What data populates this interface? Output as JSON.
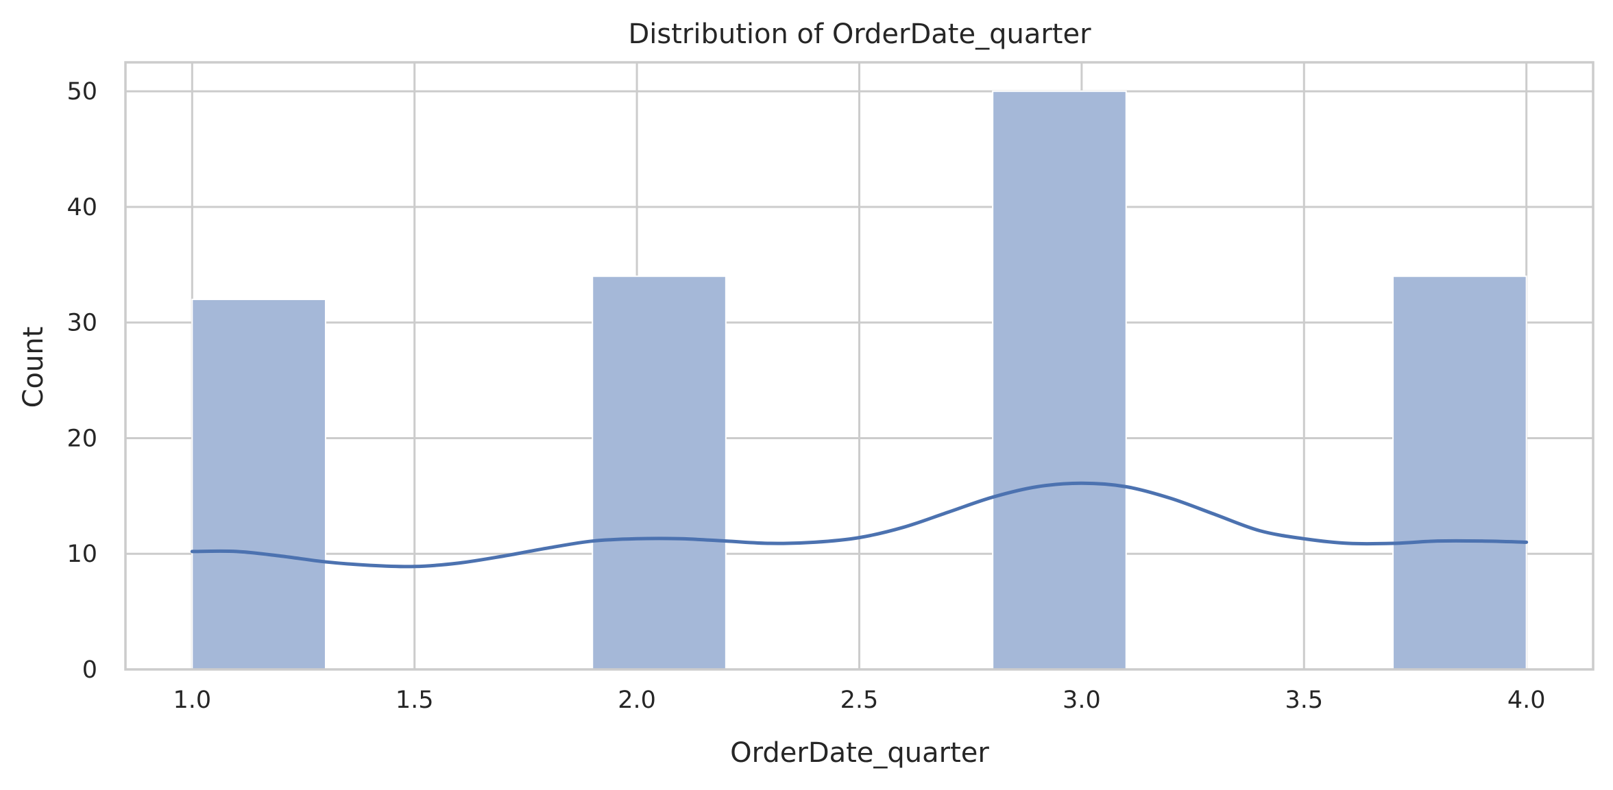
{
  "chart_data": {
    "type": "bar",
    "subtype": "histogram-with-kde",
    "title": "Distribution of OrderDate_quarter",
    "xlabel": "OrderDate_quarter",
    "ylabel": "Count",
    "xlim": [
      0.85,
      4.15
    ],
    "ylim": [
      0,
      52.5
    ],
    "xticks": [
      1.0,
      1.5,
      2.0,
      2.5,
      3.0,
      3.5,
      4.0
    ],
    "xtick_labels": [
      "1.0",
      "1.5",
      "2.0",
      "2.5",
      "3.0",
      "3.5",
      "4.0"
    ],
    "yticks": [
      0,
      10,
      20,
      30,
      40,
      50
    ],
    "ytick_labels": [
      "0",
      "10",
      "20",
      "30",
      "40",
      "50"
    ],
    "bins": [
      {
        "start": 1.0,
        "end": 1.3,
        "count": 32
      },
      {
        "start": 1.9,
        "end": 2.2,
        "count": 34
      },
      {
        "start": 2.8,
        "end": 3.1,
        "count": 50
      },
      {
        "start": 3.7,
        "end": 4.0,
        "count": 34
      }
    ],
    "kde": {
      "x": [
        1.0,
        1.1,
        1.2,
        1.3,
        1.4,
        1.5,
        1.6,
        1.7,
        1.8,
        1.9,
        2.0,
        2.1,
        2.2,
        2.3,
        2.4,
        2.5,
        2.6,
        2.7,
        2.8,
        2.9,
        3.0,
        3.1,
        3.2,
        3.3,
        3.4,
        3.5,
        3.6,
        3.7,
        3.8,
        3.9,
        4.0
      ],
      "y": [
        10.2,
        10.2,
        9.8,
        9.3,
        9.0,
        8.9,
        9.2,
        9.8,
        10.5,
        11.1,
        11.3,
        11.3,
        11.1,
        10.9,
        11.0,
        11.4,
        12.3,
        13.6,
        14.9,
        15.8,
        16.1,
        15.8,
        14.8,
        13.4,
        12.0,
        11.3,
        10.9,
        10.9,
        11.1,
        11.1,
        11.0
      ]
    },
    "grid": true,
    "legend": false,
    "colors": {
      "bar": "#a5b8d8",
      "kde": "#4c72b0",
      "grid": "#cccccc",
      "text": "#262626"
    }
  }
}
